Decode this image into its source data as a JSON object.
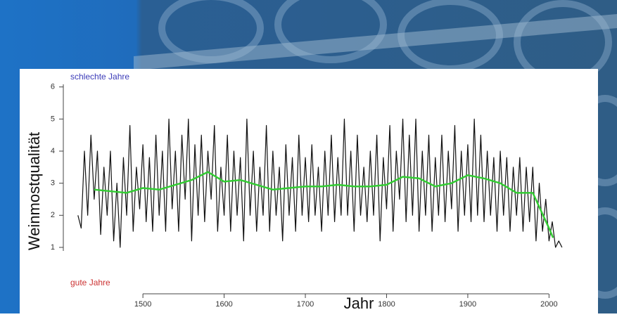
{
  "chart_data": {
    "type": "line",
    "y_label": "Weinmostqualität",
    "x_label": "Jahr",
    "top_note": "schlechte Jahre",
    "bottom_note": "gute Jahre",
    "xlim": [
      1415,
      2030
    ],
    "ylim": [
      0,
      6.3
    ],
    "xticks": [
      1500,
      1600,
      1700,
      1800,
      1900,
      2000
    ],
    "yticks": [
      1,
      2,
      3,
      4,
      5,
      6
    ],
    "series": [
      {
        "color": "#111111",
        "x": [
          1420,
          1424,
          1428,
          1432,
          1436,
          1440,
          1444,
          1448,
          1452,
          1456,
          1460,
          1464,
          1468,
          1472,
          1476,
          1480,
          1484,
          1488,
          1492,
          1496,
          1500,
          1504,
          1508,
          1512,
          1516,
          1520,
          1524,
          1528,
          1532,
          1536,
          1540,
          1544,
          1548,
          1552,
          1556,
          1560,
          1564,
          1568,
          1572,
          1576,
          1580,
          1584,
          1588,
          1592,
          1596,
          1600,
          1604,
          1608,
          1612,
          1616,
          1620,
          1624,
          1628,
          1632,
          1636,
          1640,
          1644,
          1648,
          1652,
          1656,
          1660,
          1664,
          1668,
          1672,
          1676,
          1680,
          1684,
          1688,
          1692,
          1696,
          1700,
          1704,
          1708,
          1712,
          1716,
          1720,
          1724,
          1728,
          1732,
          1736,
          1740,
          1744,
          1748,
          1752,
          1756,
          1760,
          1764,
          1768,
          1772,
          1776,
          1780,
          1784,
          1788,
          1792,
          1796,
          1800,
          1804,
          1808,
          1812,
          1816,
          1820,
          1824,
          1828,
          1832,
          1836,
          1840,
          1844,
          1848,
          1852,
          1856,
          1860,
          1864,
          1868,
          1872,
          1876,
          1880,
          1884,
          1888,
          1892,
          1896,
          1900,
          1904,
          1908,
          1912,
          1916,
          1920,
          1924,
          1928,
          1932,
          1936,
          1940,
          1944,
          1948,
          1952,
          1956,
          1960,
          1964,
          1968,
          1972,
          1976,
          1980,
          1984,
          1988,
          1992,
          1996,
          2000,
          2004,
          2008,
          2012,
          2016
        ],
        "values": [
          2.0,
          1.6,
          4.0,
          2.0,
          4.5,
          2.5,
          4.0,
          1.4,
          3.5,
          2.0,
          4.0,
          1.2,
          3.0,
          1.0,
          3.8,
          2.0,
          4.8,
          1.5,
          3.5,
          2.2,
          4.2,
          1.8,
          3.8,
          1.5,
          4.5,
          2.0,
          4.0,
          1.5,
          5.0,
          2.2,
          4.0,
          1.5,
          4.5,
          2.5,
          5.0,
          1.2,
          4.2,
          2.0,
          4.5,
          1.8,
          4.0,
          2.5,
          4.8,
          1.5,
          3.5,
          2.0,
          4.5,
          1.5,
          4.0,
          2.0,
          3.8,
          1.2,
          5.0,
          2.0,
          4.0,
          1.5,
          3.5,
          2.0,
          4.8,
          1.5,
          4.0,
          2.0,
          3.5,
          1.2,
          4.2,
          2.0,
          3.8,
          1.5,
          4.5,
          2.0,
          3.8,
          1.8,
          4.2,
          2.0,
          3.5,
          1.5,
          4.0,
          2.0,
          4.5,
          1.8,
          3.8,
          2.0,
          5.0,
          2.0,
          4.0,
          1.5,
          4.5,
          2.0,
          3.5,
          1.8,
          4.0,
          2.0,
          4.5,
          1.2,
          3.8,
          2.2,
          4.8,
          1.5,
          4.0,
          2.5,
          5.0,
          1.8,
          4.5,
          2.0,
          5.0,
          1.5,
          4.0,
          2.0,
          4.5,
          1.5,
          3.8,
          2.0,
          4.5,
          1.8,
          4.0,
          2.2,
          4.8,
          1.5,
          4.0,
          2.0,
          4.2,
          1.8,
          5.0,
          2.0,
          4.5,
          1.8,
          4.0,
          2.0,
          3.8,
          1.5,
          4.0,
          2.0,
          3.8,
          1.5,
          3.5,
          2.0,
          3.8,
          1.5,
          3.5,
          1.8,
          3.5,
          1.2,
          3.0,
          1.5,
          2.5,
          1.2,
          1.8,
          1.0,
          1.2,
          1.0
        ]
      },
      {
        "color": "#33cc33",
        "x": [
          1440,
          1460,
          1480,
          1500,
          1520,
          1540,
          1560,
          1580,
          1600,
          1620,
          1640,
          1660,
          1680,
          1700,
          1720,
          1740,
          1760,
          1780,
          1800,
          1820,
          1840,
          1860,
          1880,
          1900,
          1920,
          1940,
          1960,
          1980,
          2000,
          2005
        ],
        "values": [
          2.8,
          2.75,
          2.7,
          2.85,
          2.8,
          2.95,
          3.1,
          3.35,
          3.05,
          3.1,
          2.95,
          2.8,
          2.85,
          2.9,
          2.9,
          2.95,
          2.9,
          2.9,
          2.95,
          3.2,
          3.15,
          2.9,
          3.0,
          3.25,
          3.15,
          3.0,
          2.7,
          2.7,
          1.6,
          1.3
        ]
      }
    ]
  }
}
